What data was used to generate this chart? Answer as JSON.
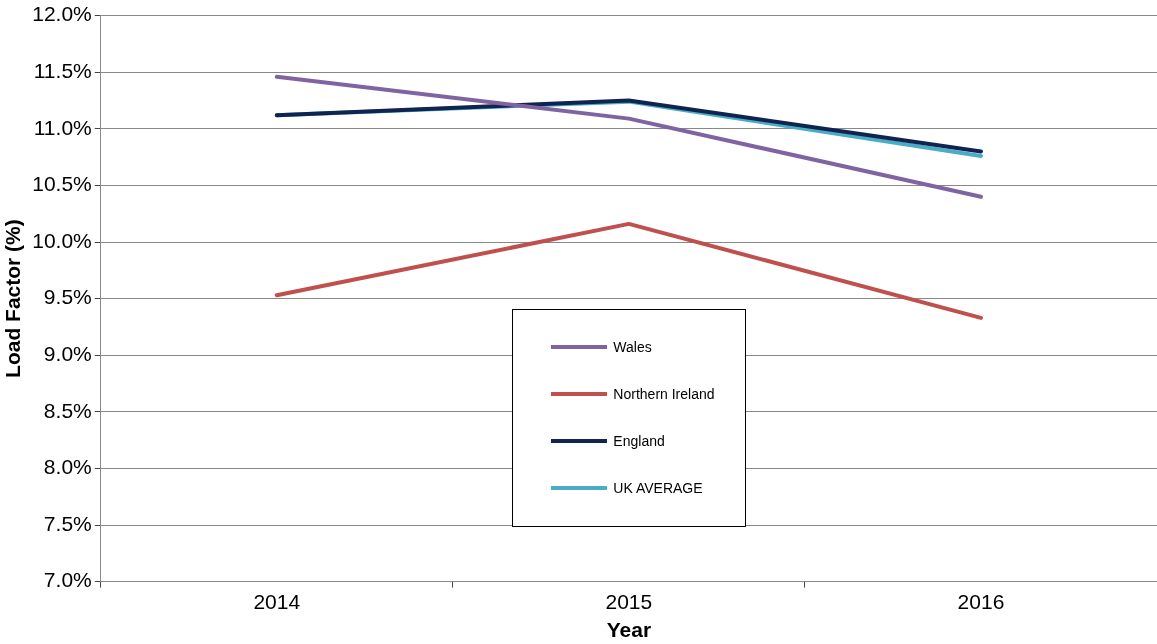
{
  "chart_data": {
    "type": "line",
    "xlabel": "Year",
    "ylabel": "Load Factor (%)",
    "categories": [
      "2014",
      "2015",
      "2016"
    ],
    "series": [
      {
        "name": "Wales",
        "color": "#8064a2",
        "values": [
          11.46,
          11.09,
          10.4
        ]
      },
      {
        "name": "Northern Ireland",
        "color": "#c0504d",
        "values": [
          9.53,
          10.16,
          9.33
        ]
      },
      {
        "name": "England",
        "color": "#0f2451",
        "values": [
          11.12,
          11.25,
          10.8
        ]
      },
      {
        "name": "UK AVERAGE",
        "color": "#4bacc6",
        "values": [
          11.12,
          11.24,
          10.76
        ]
      }
    ],
    "ylim": [
      7,
      12
    ],
    "yticks": [
      {
        "value": 7,
        "label": "7.0%"
      },
      {
        "value": 7.5,
        "label": "7.5%"
      },
      {
        "value": 8,
        "label": "8.0%"
      },
      {
        "value": 8.5,
        "label": "8.5%"
      },
      {
        "value": 9,
        "label": "9.0%"
      },
      {
        "value": 9.5,
        "label": "9.5%"
      },
      {
        "value": 10,
        "label": "10.0%"
      },
      {
        "value": 10.5,
        "label": "10.5%"
      },
      {
        "value": 11,
        "label": "11.0%"
      },
      {
        "value": 11.5,
        "label": "11.5%"
      },
      {
        "value": 12,
        "label": "12.0%"
      }
    ],
    "grid": "y",
    "legend": "bottom",
    "marker": "none",
    "line_style": "solid"
  }
}
